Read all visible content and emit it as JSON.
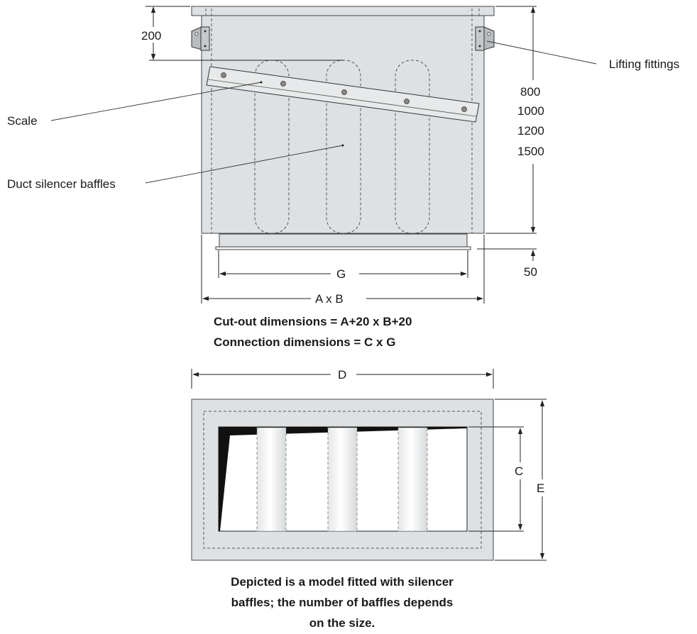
{
  "labels": {
    "lifting_fittings": "Lifting fittings",
    "scale": "Scale",
    "duct_silencer_baffles": "Duct silencer baffles"
  },
  "dimensions": {
    "top_offset": "200",
    "heights": [
      "800",
      "1000",
      "1200",
      "1500"
    ],
    "flange": "50",
    "g": "G",
    "a_x_b": "A x B",
    "d": "D",
    "c": "C",
    "e": "E"
  },
  "notes": {
    "cutout": "Cut-out dimensions = A+20 x B+20",
    "connection": "Connection dimensions = C x G",
    "caption_lines": [
      "Depicted is a model fitted with silencer",
      "baffles; the number of baffles depends",
      "on the size."
    ]
  },
  "colors": {
    "panel_fill": "#dde1e3",
    "line": "#222222",
    "opening": "#ffffff",
    "shadow": "#111111"
  }
}
